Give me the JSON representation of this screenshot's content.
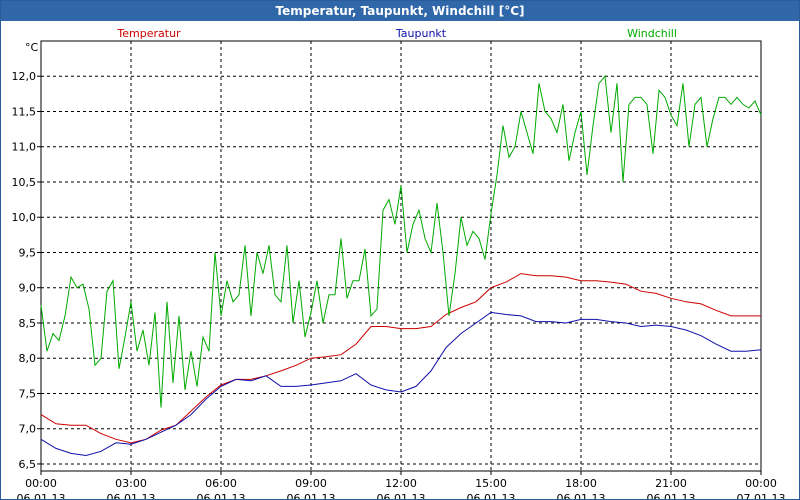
{
  "window": {
    "title": "Temperatur, Taupunkt, Windchill [°C]"
  },
  "chart_data": {
    "type": "line",
    "title": "Temperatur, Taupunkt, Windchill [°C]",
    "ylabel": "°C",
    "grid": true,
    "legend_placement": "top",
    "ylim": [
      6.4,
      12.5
    ],
    "x_range_hours": [
      0,
      24
    ],
    "yticks": [
      {
        "value": 6.5,
        "label": "6,5"
      },
      {
        "value": 7.0,
        "label": "7,0"
      },
      {
        "value": 7.5,
        "label": "7,5"
      },
      {
        "value": 8.0,
        "label": "8,0"
      },
      {
        "value": 8.5,
        "label": "8,5"
      },
      {
        "value": 9.0,
        "label": "9,0"
      },
      {
        "value": 9.5,
        "label": "9,5"
      },
      {
        "value": 10.0,
        "label": "10,0"
      },
      {
        "value": 10.5,
        "label": "10,5"
      },
      {
        "value": 11.0,
        "label": "11,0"
      },
      {
        "value": 11.5,
        "label": "11,5"
      },
      {
        "value": 12.0,
        "label": "12,0"
      }
    ],
    "xticks": [
      {
        "hour": 0,
        "time": "00:00",
        "date": "06.01.13"
      },
      {
        "hour": 3,
        "time": "03:00",
        "date": "06.01.13"
      },
      {
        "hour": 6,
        "time": "06:00",
        "date": "06.01.13"
      },
      {
        "hour": 9,
        "time": "09:00",
        "date": "06.01.13"
      },
      {
        "hour": 12,
        "time": "12:00",
        "date": "06.01.13"
      },
      {
        "hour": 15,
        "time": "15:00",
        "date": "06.01.13"
      },
      {
        "hour": 18,
        "time": "18:00",
        "date": "06.01.13"
      },
      {
        "hour": 21,
        "time": "21:00",
        "date": "06.01.13"
      },
      {
        "hour": 24,
        "time": "00:00",
        "date": "07.01.13"
      }
    ],
    "series": [
      {
        "name": "Temperatur",
        "color": "#cc0000",
        "points": [
          [
            0,
            7.2
          ],
          [
            0.5,
            7.07
          ],
          [
            1,
            7.05
          ],
          [
            1.5,
            7.05
          ],
          [
            2,
            6.93
          ],
          [
            2.5,
            6.85
          ],
          [
            3,
            6.8
          ],
          [
            3.5,
            6.85
          ],
          [
            4,
            6.98
          ],
          [
            4.5,
            7.05
          ],
          [
            5,
            7.25
          ],
          [
            5.5,
            7.45
          ],
          [
            6,
            7.62
          ],
          [
            6.5,
            7.7
          ],
          [
            7,
            7.7
          ],
          [
            7.5,
            7.75
          ],
          [
            8,
            7.82
          ],
          [
            8.5,
            7.9
          ],
          [
            9,
            8.0
          ],
          [
            9.5,
            8.02
          ],
          [
            10,
            8.05
          ],
          [
            10.5,
            8.2
          ],
          [
            11,
            8.45
          ],
          [
            11.5,
            8.45
          ],
          [
            12,
            8.42
          ],
          [
            12.5,
            8.42
          ],
          [
            13,
            8.45
          ],
          [
            13.5,
            8.62
          ],
          [
            14,
            8.72
          ],
          [
            14.5,
            8.8
          ],
          [
            15,
            9.0
          ],
          [
            15.5,
            9.08
          ],
          [
            16,
            9.2
          ],
          [
            16.5,
            9.17
          ],
          [
            17,
            9.17
          ],
          [
            17.5,
            9.15
          ],
          [
            18,
            9.1
          ],
          [
            18.5,
            9.1
          ],
          [
            19,
            9.08
          ],
          [
            19.5,
            9.05
          ],
          [
            20,
            8.95
          ],
          [
            20.5,
            8.92
          ],
          [
            21,
            8.85
          ],
          [
            21.5,
            8.8
          ],
          [
            22,
            8.77
          ],
          [
            22.5,
            8.68
          ],
          [
            23,
            8.6
          ],
          [
            23.5,
            8.6
          ],
          [
            24,
            8.6
          ]
        ]
      },
      {
        "name": "Taupunkt",
        "color": "#1010aa",
        "points": [
          [
            0,
            6.85
          ],
          [
            0.5,
            6.72
          ],
          [
            1,
            6.65
          ],
          [
            1.5,
            6.62
          ],
          [
            2,
            6.68
          ],
          [
            2.5,
            6.8
          ],
          [
            3,
            6.78
          ],
          [
            3.5,
            6.85
          ],
          [
            4,
            6.95
          ],
          [
            4.5,
            7.05
          ],
          [
            5,
            7.2
          ],
          [
            5.5,
            7.42
          ],
          [
            6,
            7.6
          ],
          [
            6.5,
            7.7
          ],
          [
            7,
            7.68
          ],
          [
            7.5,
            7.75
          ],
          [
            8,
            7.6
          ],
          [
            8.5,
            7.6
          ],
          [
            9,
            7.62
          ],
          [
            9.5,
            7.65
          ],
          [
            10,
            7.68
          ],
          [
            10.5,
            7.78
          ],
          [
            11,
            7.62
          ],
          [
            11.5,
            7.55
          ],
          [
            12,
            7.52
          ],
          [
            12.5,
            7.6
          ],
          [
            13,
            7.82
          ],
          [
            13.5,
            8.15
          ],
          [
            14,
            8.35
          ],
          [
            14.5,
            8.5
          ],
          [
            15,
            8.65
          ],
          [
            15.5,
            8.62
          ],
          [
            16,
            8.6
          ],
          [
            16.5,
            8.52
          ],
          [
            17,
            8.52
          ],
          [
            17.5,
            8.5
          ],
          [
            18,
            8.55
          ],
          [
            18.5,
            8.55
          ],
          [
            19,
            8.52
          ],
          [
            19.5,
            8.5
          ],
          [
            20,
            8.45
          ],
          [
            20.5,
            8.47
          ],
          [
            21,
            8.45
          ],
          [
            21.5,
            8.4
          ],
          [
            22,
            8.32
          ],
          [
            22.5,
            8.2
          ],
          [
            23,
            8.1
          ],
          [
            23.5,
            8.1
          ],
          [
            24,
            8.12
          ]
        ]
      },
      {
        "name": "Windchill",
        "color": "#00aa00",
        "points": [
          [
            0,
            8.75
          ],
          [
            0.2,
            8.1
          ],
          [
            0.4,
            8.35
          ],
          [
            0.6,
            8.25
          ],
          [
            0.8,
            8.6
          ],
          [
            1,
            9.15
          ],
          [
            1.2,
            9.0
          ],
          [
            1.4,
            9.05
          ],
          [
            1.6,
            8.7
          ],
          [
            1.8,
            7.9
          ],
          [
            2,
            8.0
          ],
          [
            2.2,
            8.95
          ],
          [
            2.4,
            9.1
          ],
          [
            2.6,
            7.85
          ],
          [
            2.8,
            8.3
          ],
          [
            3,
            8.8
          ],
          [
            3.2,
            8.1
          ],
          [
            3.4,
            8.4
          ],
          [
            3.6,
            7.9
          ],
          [
            3.8,
            8.65
          ],
          [
            4,
            7.3
          ],
          [
            4.2,
            8.8
          ],
          [
            4.4,
            7.65
          ],
          [
            4.6,
            8.6
          ],
          [
            4.8,
            7.55
          ],
          [
            5,
            8.1
          ],
          [
            5.2,
            7.6
          ],
          [
            5.4,
            8.3
          ],
          [
            5.6,
            8.1
          ],
          [
            5.8,
            9.5
          ],
          [
            6,
            8.6
          ],
          [
            6.2,
            9.1
          ],
          [
            6.4,
            8.8
          ],
          [
            6.6,
            8.9
          ],
          [
            6.8,
            9.6
          ],
          [
            7,
            8.6
          ],
          [
            7.2,
            9.5
          ],
          [
            7.4,
            9.2
          ],
          [
            7.6,
            9.6
          ],
          [
            7.8,
            8.9
          ],
          [
            8,
            8.8
          ],
          [
            8.2,
            9.6
          ],
          [
            8.4,
            8.5
          ],
          [
            8.6,
            9.1
          ],
          [
            8.8,
            8.3
          ],
          [
            9,
            8.65
          ],
          [
            9.2,
            9.1
          ],
          [
            9.4,
            8.5
          ],
          [
            9.6,
            8.9
          ],
          [
            9.8,
            8.9
          ],
          [
            10,
            9.7
          ],
          [
            10.2,
            8.85
          ],
          [
            10.4,
            9.1
          ],
          [
            10.6,
            9.1
          ],
          [
            10.8,
            9.55
          ],
          [
            11,
            8.6
          ],
          [
            11.2,
            8.7
          ],
          [
            11.4,
            10.1
          ],
          [
            11.6,
            10.25
          ],
          [
            11.8,
            9.9
          ],
          [
            12,
            10.45
          ],
          [
            12.2,
            9.5
          ],
          [
            12.4,
            9.9
          ],
          [
            12.6,
            10.1
          ],
          [
            12.8,
            9.7
          ],
          [
            13,
            9.5
          ],
          [
            13.2,
            10.2
          ],
          [
            13.4,
            9.5
          ],
          [
            13.6,
            8.6
          ],
          [
            13.8,
            9.2
          ],
          [
            14,
            10.0
          ],
          [
            14.2,
            9.6
          ],
          [
            14.4,
            9.8
          ],
          [
            14.6,
            9.7
          ],
          [
            14.8,
            9.4
          ],
          [
            15,
            10.05
          ],
          [
            15.2,
            10.6
          ],
          [
            15.4,
            11.3
          ],
          [
            15.6,
            10.85
          ],
          [
            15.8,
            11.0
          ],
          [
            16,
            11.5
          ],
          [
            16.2,
            11.2
          ],
          [
            16.4,
            10.9
          ],
          [
            16.6,
            11.9
          ],
          [
            16.8,
            11.5
          ],
          [
            17,
            11.4
          ],
          [
            17.2,
            11.2
          ],
          [
            17.4,
            11.6
          ],
          [
            17.6,
            10.8
          ],
          [
            17.8,
            11.2
          ],
          [
            18,
            11.5
          ],
          [
            18.2,
            10.6
          ],
          [
            18.4,
            11.3
          ],
          [
            18.6,
            11.9
          ],
          [
            18.8,
            12.0
          ],
          [
            19,
            11.2
          ],
          [
            19.2,
            11.9
          ],
          [
            19.4,
            10.5
          ],
          [
            19.6,
            11.6
          ],
          [
            19.8,
            11.7
          ],
          [
            20,
            11.7
          ],
          [
            20.2,
            11.6
          ],
          [
            20.4,
            10.9
          ],
          [
            20.6,
            11.8
          ],
          [
            20.8,
            11.7
          ],
          [
            21,
            11.45
          ],
          [
            21.2,
            11.3
          ],
          [
            21.4,
            11.9
          ],
          [
            21.6,
            11.0
          ],
          [
            21.8,
            11.6
          ],
          [
            22,
            11.7
          ],
          [
            22.2,
            11.0
          ],
          [
            22.4,
            11.4
          ],
          [
            22.6,
            11.7
          ],
          [
            22.8,
            11.7
          ],
          [
            23,
            11.6
          ],
          [
            23.2,
            11.7
          ],
          [
            23.4,
            11.6
          ],
          [
            23.6,
            11.55
          ],
          [
            23.8,
            11.65
          ],
          [
            24,
            11.45
          ]
        ]
      }
    ]
  }
}
